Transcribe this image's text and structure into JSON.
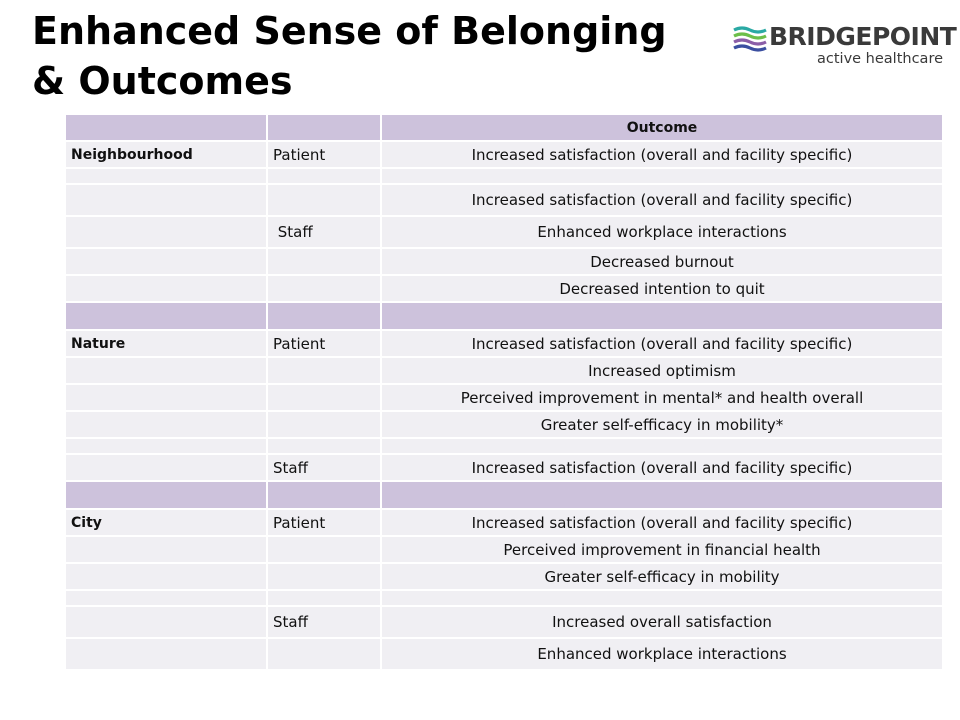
{
  "title": {
    "line1": "Enhanced Sense of Belonging",
    "line2": "& Outcomes"
  },
  "logo": {
    "brand": "BRIDGEPOINT",
    "tagline": "active healthcare",
    "colors": [
      "#2aa9a4",
      "#6cbf4a",
      "#8b5ea8",
      "#3b4fa0"
    ]
  },
  "table": {
    "header": {
      "c1": "",
      "c2": "",
      "c3": "Outcome"
    },
    "rows": [
      {
        "c1": "Neighbourhood",
        "c2": "Patient",
        "c3": "Increased satisfaction (overall and facility specific)"
      },
      {
        "c1": "",
        "c2": "",
        "c3": ""
      },
      {
        "c1": "",
        "c2": "",
        "c3": "Increased satisfaction (overall and facility specific)"
      },
      {
        "c1": "",
        "c2": " Staff",
        "c3": "Enhanced workplace interactions"
      },
      {
        "c1": "",
        "c2": "",
        "c3": "Decreased burnout"
      },
      {
        "c1": "",
        "c2": "",
        "c3": "Decreased intention to quit"
      },
      {
        "c1": "",
        "c2": "",
        "c3": ""
      },
      {
        "c1": "Nature",
        "c2": "Patient",
        "c3": "Increased satisfaction (overall and facility specific)"
      },
      {
        "c1": "",
        "c2": "",
        "c3": "Increased optimism"
      },
      {
        "c1": "",
        "c2": "",
        "c3": "Perceived improvement in mental* and health overall"
      },
      {
        "c1": "",
        "c2": "",
        "c3": "Greater self-efficacy in mobility*"
      },
      {
        "c1": "",
        "c2": "",
        "c3": ""
      },
      {
        "c1": "",
        "c2": "Staff",
        "c3": "Increased satisfaction (overall and facility specific)"
      },
      {
        "c1": "",
        "c2": "",
        "c3": ""
      },
      {
        "c1": "City",
        "c2": "Patient",
        "c3": "Increased satisfaction (overall and facility specific)"
      },
      {
        "c1": "",
        "c2": "",
        "c3": "Perceived improvement in financial health"
      },
      {
        "c1": "",
        "c2": "",
        "c3": "Greater self-efficacy in mobility"
      },
      {
        "c1": "",
        "c2": "",
        "c3": ""
      },
      {
        "c1": "",
        "c2": "Staff",
        "c3": "Increased overall satisfaction"
      },
      {
        "c1": "",
        "c2": "",
        "c3": "Enhanced workplace interactions"
      }
    ]
  }
}
